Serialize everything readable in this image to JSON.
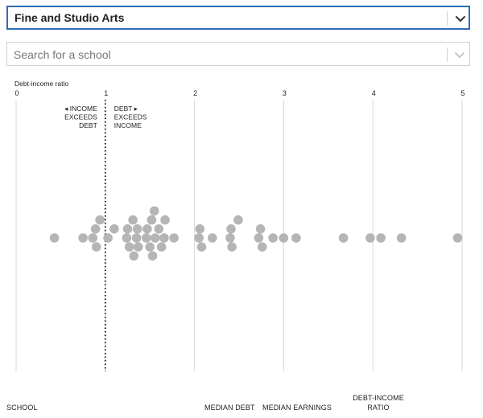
{
  "filter": {
    "selected": "Fine and Studio Arts"
  },
  "search": {
    "placeholder": "Search for a school"
  },
  "icons": {
    "dropdown": "chevron-down-icon",
    "search_dropdown": "chevron-down-icon"
  },
  "colors": {
    "accent": "#2f6db5",
    "dot": "#b5b5b5",
    "gridline": "#d8d8d8"
  },
  "chart_data": {
    "type": "scatter",
    "title": "",
    "xlabel": "Debt-income ratio",
    "ylabel": "",
    "xlim": [
      0,
      5
    ],
    "xticks": [
      "0",
      "1",
      "2",
      "3",
      "4",
      "5"
    ],
    "reference_line": 1,
    "annotations": {
      "left": [
        "◂ INCOME",
        "EXCEEDS",
        "DEBT"
      ],
      "right": [
        "DEBT ▸",
        "EXCEEDS",
        "INCOME"
      ]
    },
    "grid": true,
    "values": [
      0.43,
      0.75,
      0.86,
      0.89,
      0.9,
      0.94,
      1.03,
      1.1,
      1.24,
      1.25,
      1.27,
      1.31,
      1.32,
      1.35,
      1.36,
      1.37,
      1.46,
      1.47,
      1.5,
      1.52,
      1.53,
      1.55,
      1.56,
      1.6,
      1.63,
      1.66,
      1.67,
      1.77,
      2.05,
      2.06,
      2.08,
      2.2,
      2.4,
      2.41,
      2.42,
      2.49,
      2.72,
      2.74,
      2.76,
      2.88,
      3.0,
      3.14,
      3.67,
      3.97,
      4.09,
      4.32,
      4.95
    ]
  },
  "columns": {
    "school": "SCHOOL",
    "median_debt": "MEDIAN DEBT",
    "median_earnings": "MEDIAN EARNINGS",
    "debt_income_ratio_line1": "DEBT-INCOME",
    "debt_income_ratio_line2": "RATIO"
  }
}
